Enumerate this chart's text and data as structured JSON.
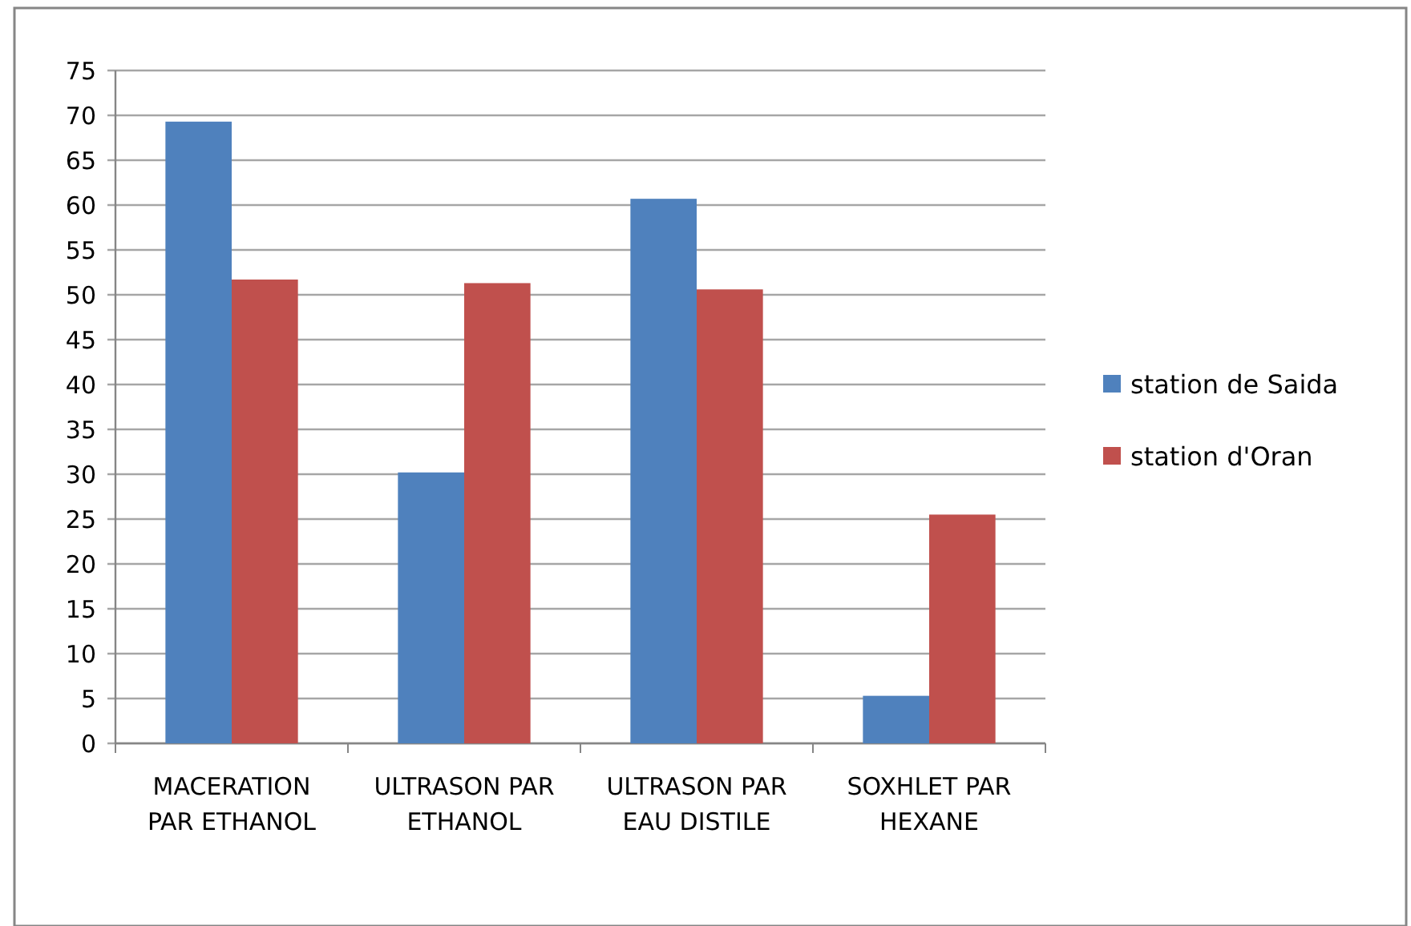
{
  "chart_data": {
    "type": "bar",
    "categories": [
      "MACERATION PAR ETHANOL",
      "ULTRASON PAR ETHANOL",
      "ULTRASON PAR EAU DISTILE",
      "SOXHLET PAR HEXANE"
    ],
    "series": [
      {
        "name": "station de Saida",
        "color": "#4f81bd",
        "values": [
          69.3,
          30.2,
          60.7,
          5.3
        ]
      },
      {
        "name": "station d'Oran",
        "color": "#c0504d",
        "values": [
          51.7,
          51.3,
          50.6,
          25.5
        ]
      }
    ],
    "ylim": [
      0,
      75
    ],
    "yticks": [
      0,
      5,
      10,
      15,
      20,
      25,
      30,
      35,
      40,
      45,
      50,
      55,
      60,
      65,
      70,
      75
    ],
    "grid": "y",
    "legend": "right"
  }
}
